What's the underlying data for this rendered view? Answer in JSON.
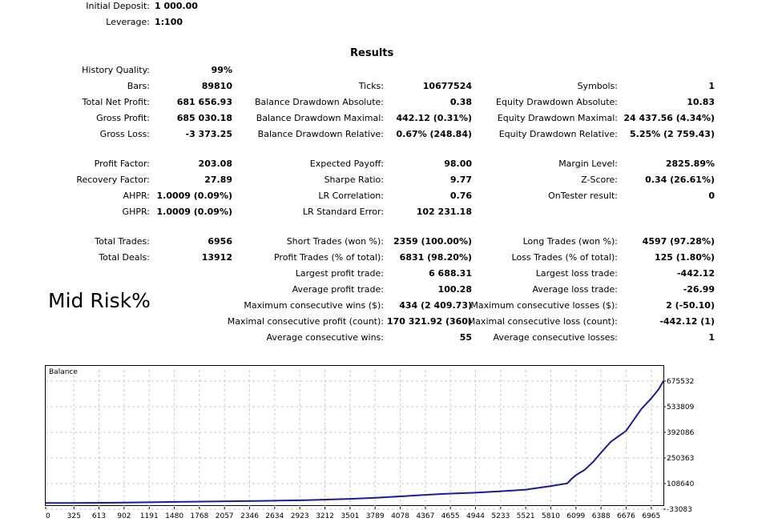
{
  "header": {
    "initial_deposit_label": "Initial Deposit:",
    "initial_deposit_value": "1 000.00",
    "leverage_label": "Leverage:",
    "leverage_value": "1:100"
  },
  "results_title": "Results",
  "overlay_text": "Mid Risk%",
  "col1": [
    {
      "label": "History Quality:",
      "value": "99%"
    },
    {
      "label": "Bars:",
      "value": "89810"
    },
    {
      "label": "Total Net Profit:",
      "value": "681 656.93"
    },
    {
      "label": "Gross Profit:",
      "value": "685 030.18"
    },
    {
      "label": "Gross Loss:",
      "value": "-3 373.25"
    },
    {
      "label": "Profit Factor:",
      "value": "203.08"
    },
    {
      "label": "Recovery Factor:",
      "value": "27.89"
    },
    {
      "label": "AHPR:",
      "value": "1.0009 (0.09%)"
    },
    {
      "label": "GHPR:",
      "value": "1.0009 (0.09%)"
    },
    {
      "label": "Total Trades:",
      "value": "6956"
    },
    {
      "label": "Total Deals:",
      "value": "13912"
    }
  ],
  "col2": [
    {
      "label": "Ticks:",
      "value": "10677524"
    },
    {
      "label": "Balance Drawdown Absolute:",
      "value": "0.38"
    },
    {
      "label": "Balance Drawdown Maximal:",
      "value": "442.12 (0.31%)"
    },
    {
      "label": "Balance Drawdown Relative:",
      "value": "0.67% (248.84)"
    },
    {
      "label": "Expected Payoff:",
      "value": "98.00"
    },
    {
      "label": "Sharpe Ratio:",
      "value": "9.77"
    },
    {
      "label": "LR Correlation:",
      "value": "0.76"
    },
    {
      "label": "LR Standard Error:",
      "value": "102 231.18"
    },
    {
      "label": "Short Trades (won %):",
      "value": "2359 (100.00%)"
    },
    {
      "label": "Profit Trades (% of total):",
      "value": "6831 (98.20%)"
    },
    {
      "label": "Largest profit trade:",
      "value": "6 688.31"
    },
    {
      "label": "Average profit trade:",
      "value": "100.28"
    },
    {
      "label": "Maximum consecutive wins ($):",
      "value": "434 (2 409.73)"
    },
    {
      "label": "Maximal consecutive profit (count):",
      "value": "170 321.92 (360)"
    },
    {
      "label": "Average consecutive wins:",
      "value": "55"
    }
  ],
  "col3": [
    {
      "label": "Symbols:",
      "value": "1"
    },
    {
      "label": "Equity Drawdown Absolute:",
      "value": "10.83"
    },
    {
      "label": "Equity Drawdown Maximal:",
      "value": "24 437.56 (4.34%)"
    },
    {
      "label": "Equity Drawdown Relative:",
      "value": "5.25% (2 759.43)"
    },
    {
      "label": "Margin Level:",
      "value": "2825.89%"
    },
    {
      "label": "Z-Score:",
      "value": "0.34 (26.61%)"
    },
    {
      "label": "OnTester result:",
      "value": "0"
    },
    {
      "label": "Long Trades (won %):",
      "value": "4597 (97.28%)"
    },
    {
      "label": "Loss Trades (% of total):",
      "value": "125 (1.80%)"
    },
    {
      "label": "Largest loss trade:",
      "value": "-442.12"
    },
    {
      "label": "Average loss trade:",
      "value": "-26.99"
    },
    {
      "label": "Maximum consecutive losses ($):",
      "value": "2 (-50.10)"
    },
    {
      "label": "Maximal consecutive loss (count):",
      "value": "-442.12 (1)"
    },
    {
      "label": "Average consecutive losses:",
      "value": "1"
    }
  ],
  "chart_data": {
    "type": "line",
    "title": "Balance",
    "xlabel": "",
    "ylabel": "",
    "x_ticks": [
      "0",
      "325",
      "613",
      "902",
      "1191",
      "1480",
      "1768",
      "2057",
      "2346",
      "2634",
      "2923",
      "3212",
      "3501",
      "3789",
      "4078",
      "4367",
      "4655",
      "4944",
      "5233",
      "5521",
      "5810",
      "6099",
      "6388",
      "6676",
      "6965"
    ],
    "y_ticks": [
      "675532",
      "533809",
      "392086",
      "250363",
      "108640",
      "-33083"
    ],
    "ylim": [
      -33083,
      675532
    ],
    "xlim": [
      0,
      7105
    ],
    "grid": true,
    "line_color": "#1a1a9c",
    "series": [
      {
        "x": [
          0,
          300,
          700,
          1000,
          1500,
          2000,
          2500,
          3000,
          3500,
          3800,
          4100,
          4367,
          4600,
          4944,
          5233,
          5521,
          5810,
          6000,
          6050,
          6099,
          6200,
          6300,
          6388,
          6500,
          6676,
          6850,
          6965,
          7050,
          7105
        ],
        "y": [
          1000,
          1500,
          2500,
          4000,
          7000,
          10000,
          13000,
          17000,
          24000,
          30000,
          38000,
          46000,
          52000,
          58000,
          66000,
          75000,
          95000,
          110000,
          135000,
          155000,
          185000,
          230000,
          280000,
          340000,
          400000,
          520000,
          580000,
          630000,
          675532
        ]
      }
    ]
  }
}
